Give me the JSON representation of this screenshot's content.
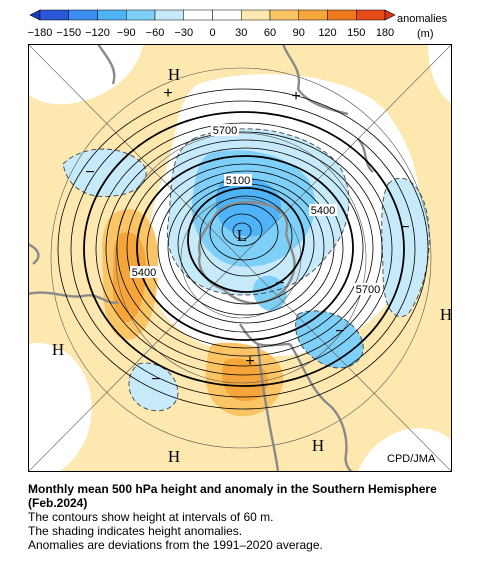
{
  "colorbar": {
    "ticks": [
      "−180",
      "−150",
      "−120",
      "−90",
      "−60",
      "−30",
      "0",
      "30",
      "60",
      "90",
      "120",
      "150",
      "180"
    ],
    "unit_label": "anomalies",
    "unit": "(m)",
    "colors": [
      "#2a58d6",
      "#3e8ef2",
      "#4fb3f8",
      "#7fd0f8",
      "#c7eafa",
      "#ffffff",
      "#ffffff",
      "#fde8b0",
      "#fbc566",
      "#f6a53a",
      "#ef7a1e",
      "#e64a19"
    ]
  },
  "map": {
    "credit": "CPD/JMA",
    "contour_labels": [
      {
        "text": "5700",
        "pos": "upper"
      },
      {
        "text": "5100",
        "pos": "inner"
      },
      {
        "text": "5400",
        "pos": "right"
      },
      {
        "text": "5400",
        "pos": "left"
      },
      {
        "text": "5700",
        "pos": "lower-right"
      }
    ],
    "centers": [
      {
        "text": "H",
        "pos": "top-left"
      },
      {
        "text": "H",
        "pos": "right"
      },
      {
        "text": "H",
        "pos": "left"
      },
      {
        "text": "H",
        "pos": "bottom-left"
      },
      {
        "text": "H",
        "pos": "bottom-right"
      },
      {
        "text": "L",
        "pos": "pole"
      }
    ],
    "signs": [
      {
        "text": "+",
        "pos": "top-left"
      },
      {
        "text": "+",
        "pos": "top-right"
      },
      {
        "text": "+",
        "pos": "bottom"
      },
      {
        "text": "−",
        "pos": "left"
      },
      {
        "text": "−",
        "pos": "right"
      },
      {
        "text": "−",
        "pos": "lower-right"
      },
      {
        "text": "−",
        "pos": "lower-left"
      },
      {
        "text": "−",
        "pos": "center-right"
      }
    ]
  },
  "caption": {
    "title": "Monthly mean 500 hPa height and anomaly in the Southern Hemisphere (Feb.2024)",
    "line1": "The contours show height at intervals of 60 m.",
    "line2": "The shading indicates height anomalies.",
    "line3": "Anomalies are deviations from the 1991–2020 average."
  }
}
